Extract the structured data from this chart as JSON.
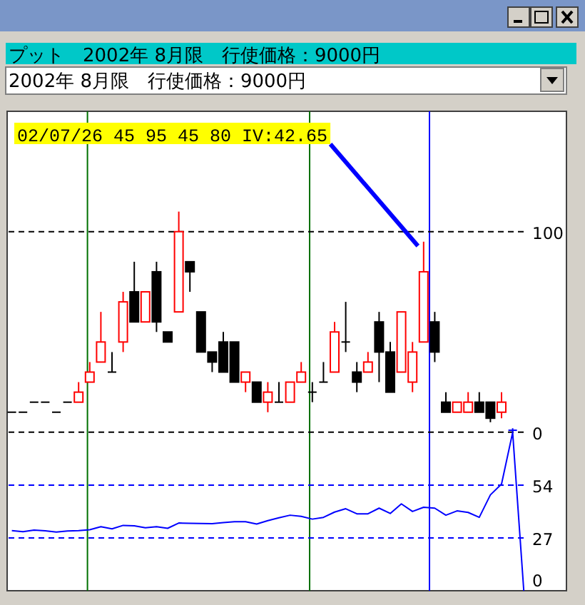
{
  "chart_data": {
    "type": "candlestick",
    "title": "プット　2002年 8月限　行使価格：9000円",
    "subtitle": "2002年 8月限　行使価格：9000円",
    "annotations": [
      "02/07/26 45 95 45 80 IV:42.65"
    ],
    "categories": [
      null,
      null,
      null,
      null,
      null,
      null,
      null,
      null,
      null,
      null,
      null,
      null,
      null,
      null,
      null,
      null,
      null,
      null,
      null,
      null,
      null,
      null,
      null,
      null,
      null,
      null,
      null,
      null,
      null,
      null,
      null,
      null,
      null,
      null,
      null,
      null,
      null,
      null,
      null,
      null,
      null,
      null,
      null,
      null,
      null,
      null,
      null
    ],
    "ohlc": [
      [
        10,
        10,
        10,
        10
      ],
      [
        10,
        10,
        10,
        10
      ],
      [
        15,
        15,
        15,
        15
      ],
      [
        15,
        15,
        15,
        15
      ],
      [
        10,
        10,
        10,
        10
      ],
      [
        15,
        15,
        15,
        15
      ],
      [
        15,
        25,
        15,
        20
      ],
      [
        25,
        35,
        25,
        30
      ],
      [
        35,
        60,
        35,
        45
      ],
      [
        30,
        40,
        30,
        30
      ],
      [
        45,
        70,
        40,
        65
      ],
      [
        70,
        85,
        55,
        55
      ],
      [
        55,
        70,
        55,
        70
      ],
      [
        80,
        85,
        50,
        55
      ],
      [
        50,
        50,
        45,
        45
      ],
      [
        60,
        110,
        60,
        100
      ],
      [
        85,
        85,
        70,
        80
      ],
      [
        60,
        60,
        40,
        40
      ],
      [
        40,
        40,
        30,
        35
      ],
      [
        45,
        50,
        30,
        30
      ],
      [
        45,
        45,
        25,
        25
      ],
      [
        25,
        30,
        20,
        30
      ],
      [
        25,
        25,
        15,
        15
      ],
      [
        15,
        25,
        10,
        20
      ],
      [
        15,
        25,
        15,
        15
      ],
      [
        15,
        25,
        15,
        25
      ],
      [
        25,
        35,
        25,
        30
      ],
      [
        20,
        25,
        15,
        20
      ],
      [
        25,
        35,
        25,
        25
      ],
      [
        30,
        55,
        30,
        50
      ],
      [
        45,
        65,
        40,
        45
      ],
      [
        30,
        35,
        20,
        25
      ],
      [
        30,
        40,
        30,
        35
      ],
      [
        55,
        60,
        25,
        40
      ],
      [
        40,
        45,
        20,
        20
      ],
      [
        30,
        60,
        30,
        60
      ],
      [
        25,
        45,
        20,
        40
      ],
      [
        45,
        95,
        45,
        80
      ],
      [
        55,
        60,
        35,
        40
      ],
      [
        15,
        20,
        10,
        10
      ],
      [
        10,
        15,
        10,
        15
      ],
      [
        10,
        20,
        10,
        15
      ],
      [
        15,
        20,
        10,
        10
      ],
      [
        15,
        15,
        5,
        7
      ],
      [
        10,
        20,
        7,
        15
      ],
      [
        1,
        2,
        0,
        1
      ],
      null
    ],
    "colors": [
      "#000000",
      "#000000",
      "#000000",
      "#000000",
      "#000000",
      "#000000",
      "#ff0000",
      "#ff0000",
      "#ff0000",
      "#000000",
      "#ff0000",
      "#000000",
      "#ff0000",
      "#000000",
      "#000000",
      "#ff0000",
      "#000000",
      "#000000",
      "#000000",
      "#000000",
      "#000000",
      "#ff0000",
      "#000000",
      "#ff0000",
      "#000000",
      "#ff0000",
      "#ff0000",
      "#000000",
      "#000000",
      "#ff0000",
      "#000000",
      "#000000",
      "#ff0000",
      "#000000",
      "#000000",
      "#ff0000",
      "#ff0000",
      "#ff0000",
      "#000000",
      "#000000",
      "#ff0000",
      "#ff0000",
      "#000000",
      "#000000",
      "#ff0000",
      "#0000ff",
      null
    ],
    "ylim": [
      -79,
      160
    ],
    "yticks": [
      0,
      100
    ],
    "y2lim": [
      0,
      245
    ],
    "y2ticks": [
      0,
      27,
      54
    ],
    "grid": "y",
    "series": [
      {
        "type": "line",
        "axis": "y2",
        "color": "#0000ff",
        "values": [
          30.7,
          30.2,
          31.0,
          30.6,
          30.0,
          30.5,
          30.7,
          31.2,
          32.7,
          31.6,
          33.4,
          33.2,
          32.2,
          32.7,
          31.9,
          34.6,
          34.5,
          34.4,
          34.3,
          34.8,
          35.3,
          35.3,
          34.1,
          35.8,
          37.3,
          38.6,
          38.0,
          36.6,
          37.5,
          40.2,
          41.9,
          39.3,
          39.3,
          42.2,
          39.5,
          44.4,
          40.5,
          42.65,
          42.2,
          38.6,
          40.8,
          40.0,
          37.5,
          49.0,
          54.5,
          80.9,
          0
        ]
      }
    ]
  }
}
